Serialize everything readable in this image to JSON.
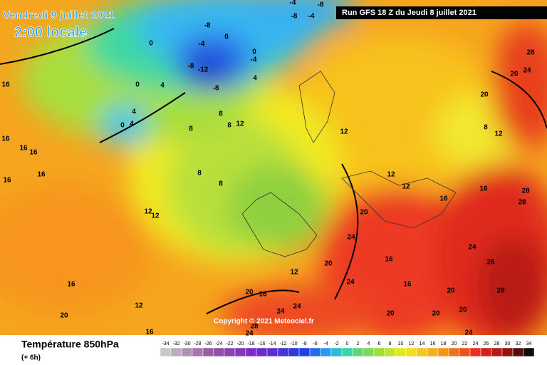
{
  "header": {
    "date": "Vendredi 9 juillet 2021",
    "time": "2:00 locale",
    "run": "Run GFS 18 Z du Jeudi 8 juillet 2021"
  },
  "copyright": "Copyright © 2021 Meteociel.fr",
  "legend": {
    "title": "Température 850hPa",
    "lead": "(+ 6h)",
    "scale": [
      -34,
      -32,
      -30,
      -28,
      -26,
      -24,
      -22,
      -20,
      -18,
      -16,
      -14,
      -12,
      -10,
      -8,
      -6,
      -4,
      -2,
      0,
      2,
      4,
      6,
      8,
      10,
      12,
      14,
      16,
      18,
      20,
      22,
      24,
      26,
      28,
      30,
      32,
      34
    ]
  },
  "map_labels": [
    16,
    16,
    16,
    16,
    16,
    16,
    16,
    20,
    16,
    12,
    12,
    12,
    8,
    8,
    8,
    8,
    8,
    12,
    4,
    0,
    4,
    0,
    4,
    0,
    -8,
    0,
    -4,
    -12,
    -8,
    -8,
    0,
    -4,
    4,
    -4,
    -8,
    -4,
    -8,
    28,
    24,
    20,
    20,
    12,
    8,
    12,
    12,
    12,
    16,
    16,
    20,
    24,
    20,
    24,
    16,
    20,
    16,
    24,
    24,
    20,
    20,
    20,
    20,
    24,
    28,
    28,
    24,
    28,
    28,
    12,
    16,
    24,
    28
  ]
}
